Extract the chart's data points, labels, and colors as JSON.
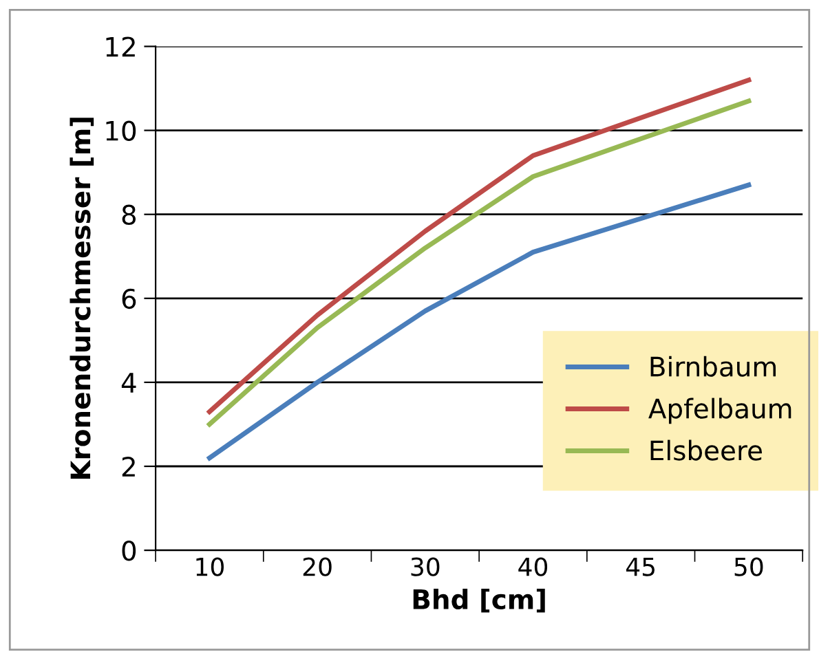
{
  "chart_data": {
    "type": "line",
    "xlabel": "Bhd [cm]",
    "ylabel": "Kronendurchmesser [m]",
    "categories": [
      "10",
      "20",
      "30",
      "40",
      "45",
      "50"
    ],
    "series": [
      {
        "name": "Birnbaum",
        "color": "#4a7ebb",
        "values": [
          2.2,
          4.0,
          5.7,
          7.1,
          7.9,
          8.7
        ]
      },
      {
        "name": "Apfelbaum",
        "color": "#be4b48",
        "values": [
          3.3,
          5.6,
          7.6,
          9.4,
          10.3,
          11.2
        ]
      },
      {
        "name": "Elsbeere",
        "color": "#98b954",
        "values": [
          3.0,
          5.3,
          7.2,
          8.9,
          9.8,
          10.7
        ]
      }
    ],
    "ylim": [
      0,
      12
    ],
    "yticks": [
      0,
      2,
      4,
      6,
      8,
      10,
      12
    ],
    "grid": "y",
    "legend": "bottom right",
    "marker": "none",
    "line_style": "solid"
  }
}
